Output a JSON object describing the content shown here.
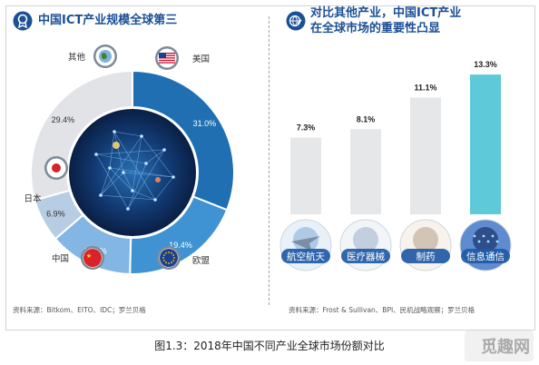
{
  "left_panel": {
    "title": "中国ICT产业规模全球第三",
    "source": "资料来源：Bitkom、EITO、IDC；罗兰贝格"
  },
  "right_panel": {
    "title_line1": "对比其他产业，中国ICT产业",
    "title_line2": "在全球市场的重要性凸显",
    "source": "资料来源：Frost & Sullivan、BPI、民机战略观察；罗兰贝格"
  },
  "caption": "图1.3：2018年中国不同产业全球市场份额对比",
  "watermark": "觅趣网",
  "colors": {
    "accent_blue": "#1b4f96",
    "donut_usa": "#1f6fb2",
    "donut_eu": "#3f93d3",
    "donut_china": "#83b6e5",
    "donut_japan": "#b7cde3",
    "donut_other": "#e1e3e6",
    "bar_gray": "#e6e7e9",
    "bar_teal": "#5ec9d8"
  },
  "chart_data": [
    {
      "type": "pie",
      "title": "中国ICT产业规模全球第三",
      "categories": [
        "美国",
        "欧盟",
        "中国",
        "日本",
        "其他"
      ],
      "values": [
        31.0,
        19.4,
        13.3,
        6.9,
        29.4
      ],
      "labels": [
        "31.0%",
        "19.4%",
        "13.3%",
        "6.9%",
        "29.4%"
      ],
      "icons": [
        "usa-flag-icon",
        "eu-flag-icon",
        "china-flag-icon",
        "japan-flag-icon",
        "globe-icon"
      ]
    },
    {
      "type": "bar",
      "categories": [
        "航空航天",
        "医疗器械",
        "制药",
        "信息通信"
      ],
      "values": [
        7.3,
        8.1,
        11.1,
        13.3
      ],
      "labels": [
        "7.3%",
        "8.1%",
        "11.1%",
        "13.3%"
      ],
      "ylim": [
        0,
        14
      ]
    }
  ]
}
